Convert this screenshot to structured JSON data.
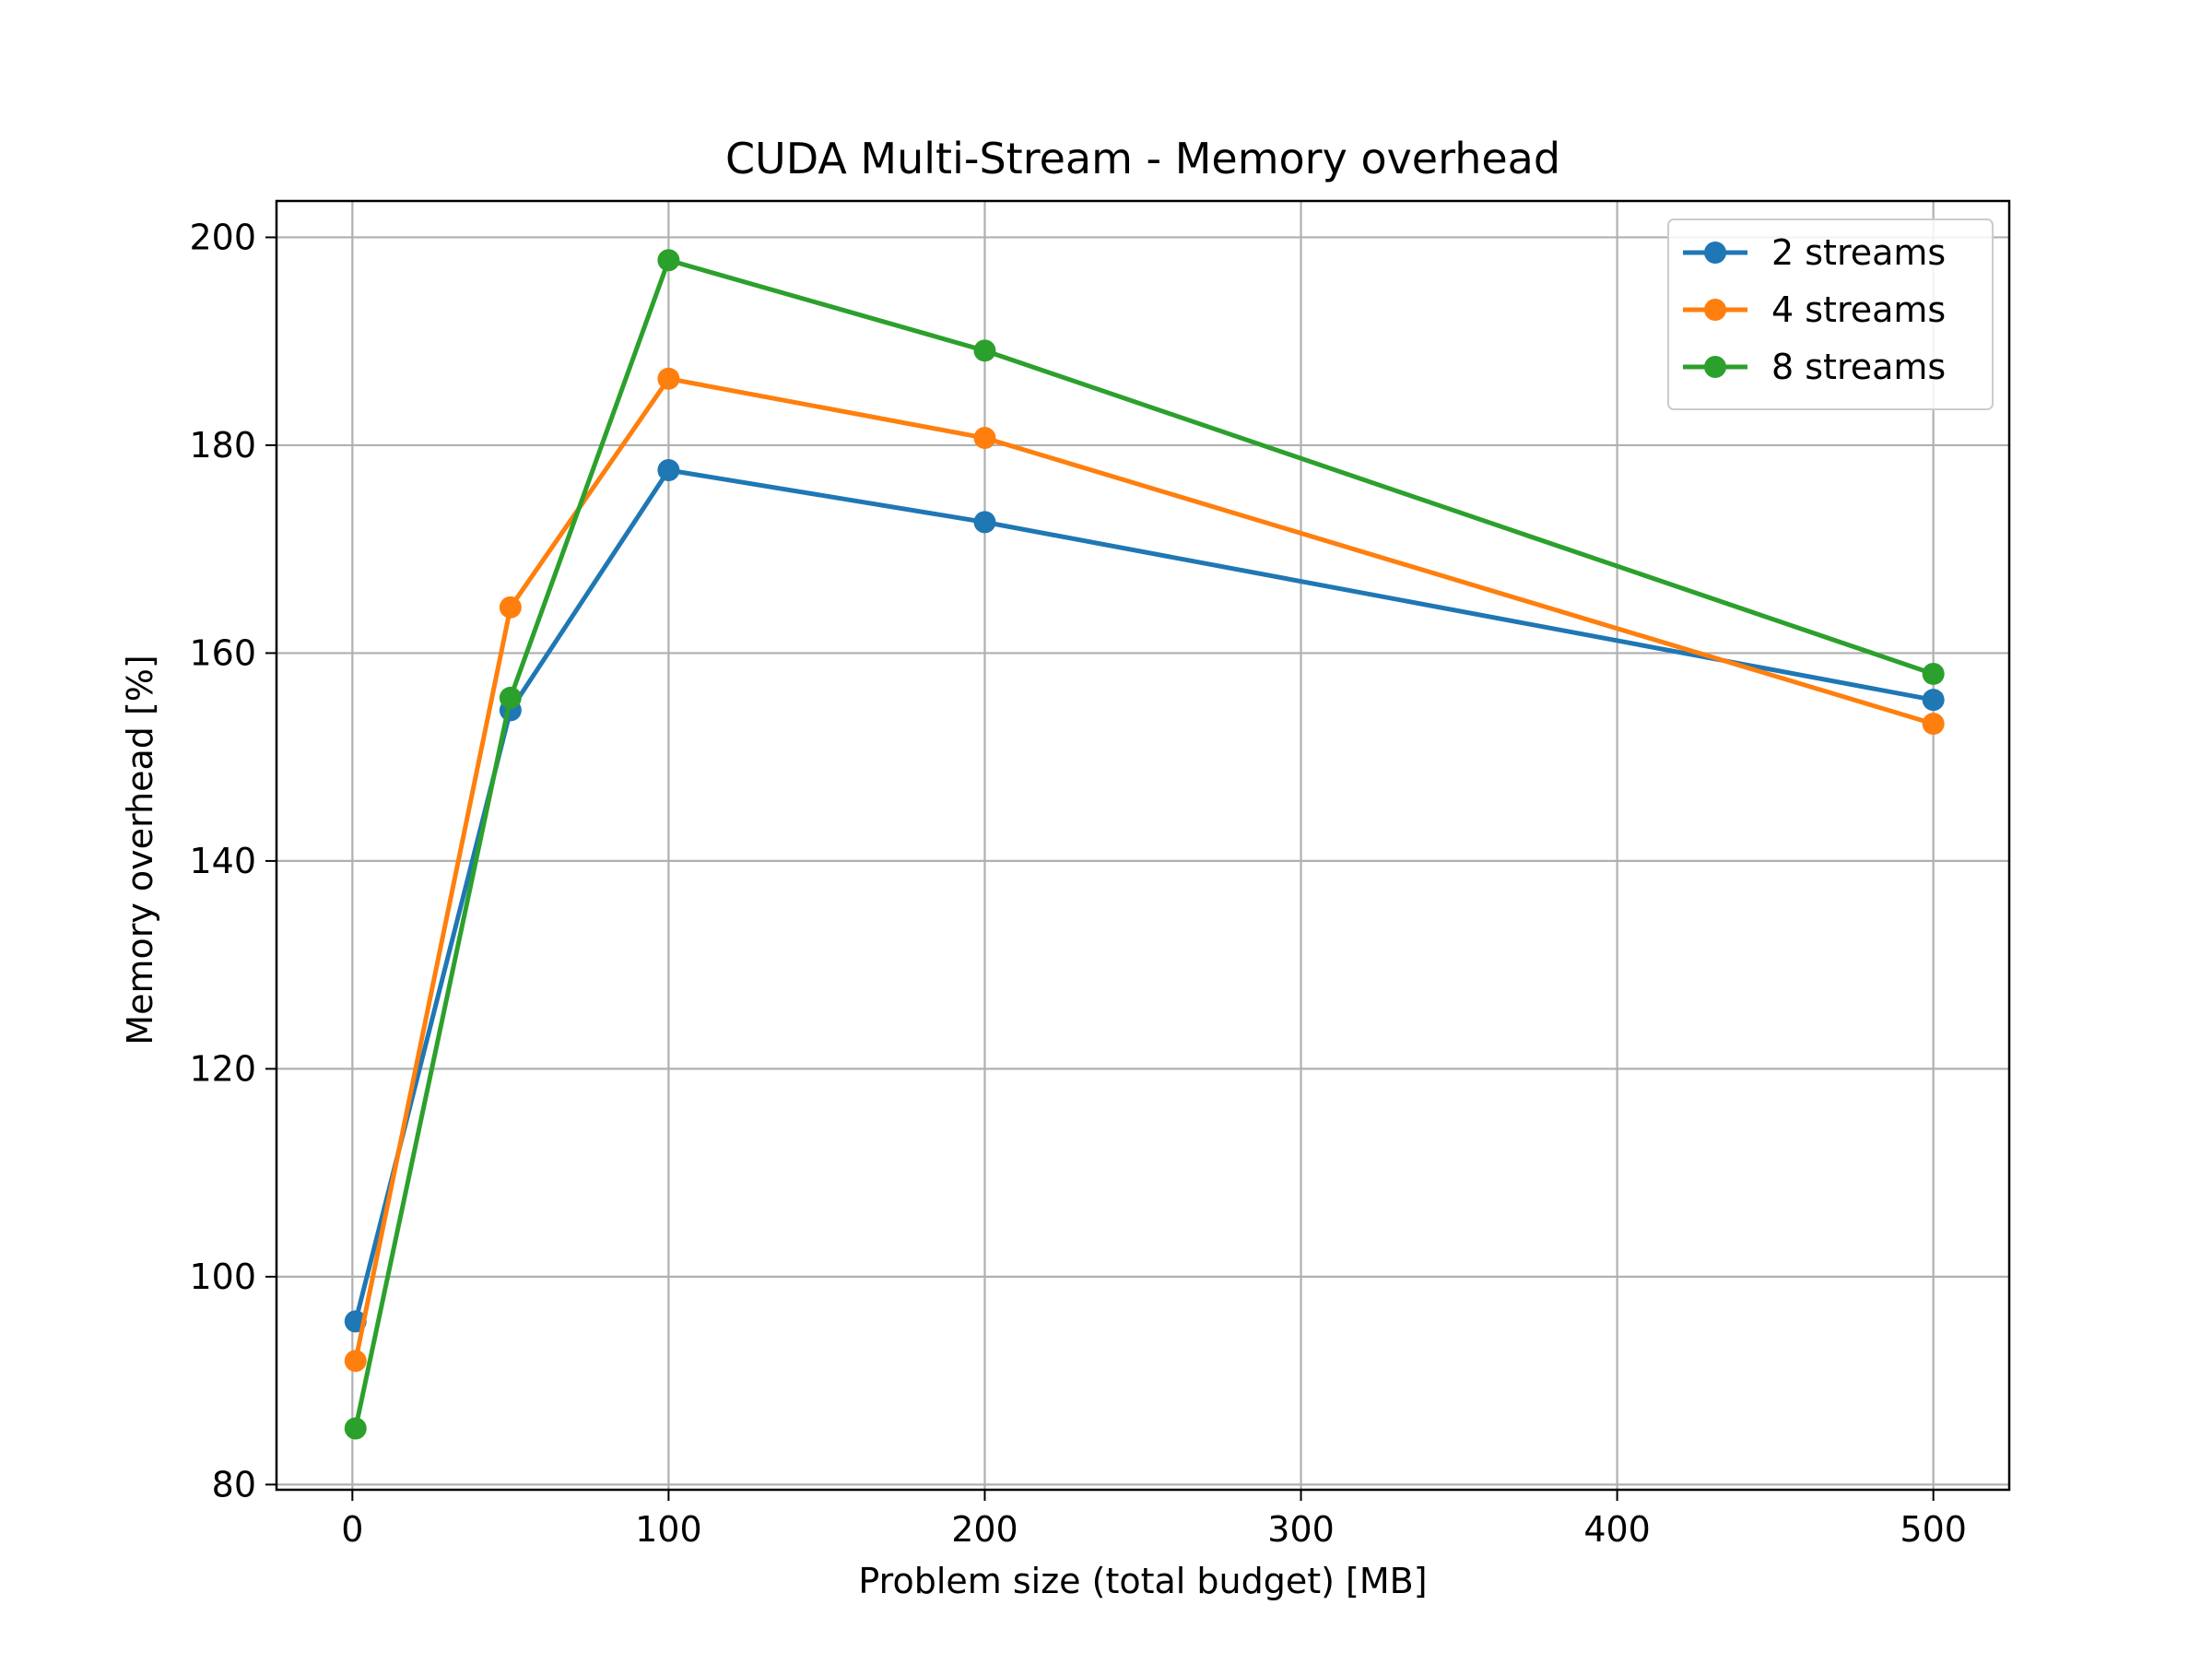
{
  "chart_data": {
    "type": "line",
    "title": "CUDA Multi-Stream - Memory overhead",
    "xlabel": "Problem size (total budget) [MB]",
    "ylabel": "Memory overhead [%]",
    "xlim": [
      -24,
      524
    ],
    "ylim": [
      79.5,
      203.5
    ],
    "x_ticks": [
      0,
      100,
      200,
      300,
      400,
      500
    ],
    "y_ticks": [
      80,
      100,
      120,
      140,
      160,
      180,
      200
    ],
    "grid": true,
    "legend_position": "top-right",
    "x": [
      1,
      50,
      100,
      200,
      500
    ],
    "series": [
      {
        "name": "2 streams",
        "color": "#1f77b4",
        "values": [
          95.7,
          154.5,
          177.6,
          172.6,
          155.5
        ]
      },
      {
        "name": "4 streams",
        "color": "#ff7f0e",
        "values": [
          91.9,
          164.4,
          186.4,
          180.7,
          153.2
        ]
      },
      {
        "name": "8 streams",
        "color": "#2ca02c",
        "values": [
          85.4,
          155.7,
          197.8,
          189.1,
          158.0
        ]
      }
    ]
  }
}
